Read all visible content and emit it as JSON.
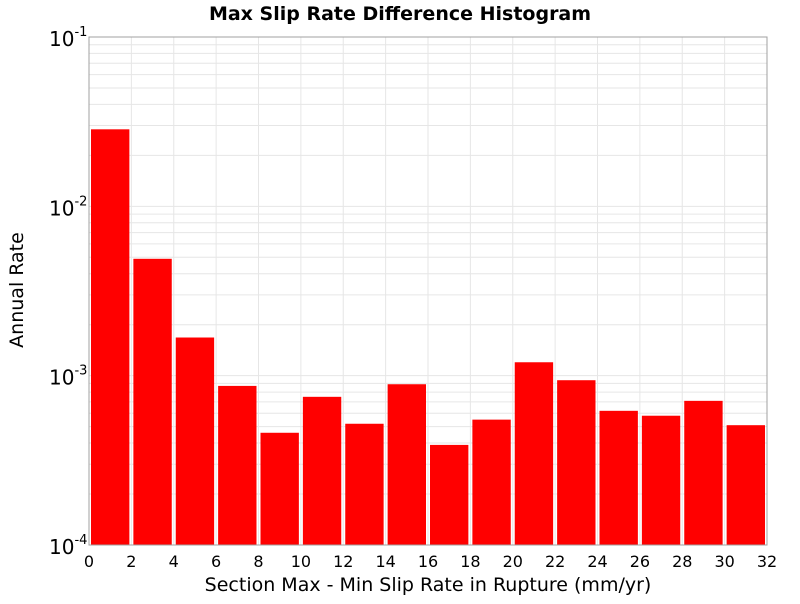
{
  "chart_data": {
    "type": "bar",
    "title": "Max Slip Rate Difference Histogram",
    "xlabel": "Section Max - Min Slip Rate in Rupture (mm/yr)",
    "ylabel": "Annual Rate",
    "y_scale": "log",
    "ylim": [
      0.0001,
      0.1
    ],
    "xlim": [
      0,
      32
    ],
    "x_ticks": [
      0,
      2,
      4,
      6,
      8,
      10,
      12,
      14,
      16,
      18,
      20,
      22,
      24,
      26,
      28,
      30,
      32
    ],
    "y_tick_labels": [
      {
        "value": 0.1,
        "base": "10",
        "exp": "-1"
      },
      {
        "value": 0.01,
        "base": "10",
        "exp": "-2"
      },
      {
        "value": 0.001,
        "base": "10",
        "exp": "-3"
      },
      {
        "value": 0.0001,
        "base": "10",
        "exp": "-4"
      }
    ],
    "bin_width": 2,
    "bins": [
      {
        "x0": 0,
        "x1": 2,
        "value": 0.0285
      },
      {
        "x0": 2,
        "x1": 4,
        "value": 0.0049
      },
      {
        "x0": 4,
        "x1": 6,
        "value": 0.00168
      },
      {
        "x0": 6,
        "x1": 8,
        "value": 0.00087
      },
      {
        "x0": 8,
        "x1": 10,
        "value": 0.00046
      },
      {
        "x0": 10,
        "x1": 12,
        "value": 0.00075
      },
      {
        "x0": 12,
        "x1": 14,
        "value": 0.00052
      },
      {
        "x0": 14,
        "x1": 16,
        "value": 0.00089
      },
      {
        "x0": 16,
        "x1": 18,
        "value": 0.00039
      },
      {
        "x0": 18,
        "x1": 20,
        "value": 0.00055
      },
      {
        "x0": 20,
        "x1": 22,
        "value": 0.0012
      },
      {
        "x0": 22,
        "x1": 24,
        "value": 0.00094
      },
      {
        "x0": 24,
        "x1": 26,
        "value": 0.00062
      },
      {
        "x0": 26,
        "x1": 28,
        "value": 0.00058
      },
      {
        "x0": 28,
        "x1": 30,
        "value": 0.00071
      },
      {
        "x0": 30,
        "x1": 32,
        "value": 0.00051
      }
    ],
    "bar_color": "#ff0000",
    "grid": true,
    "grid_color": "#e6e6e6",
    "legend": "none"
  }
}
